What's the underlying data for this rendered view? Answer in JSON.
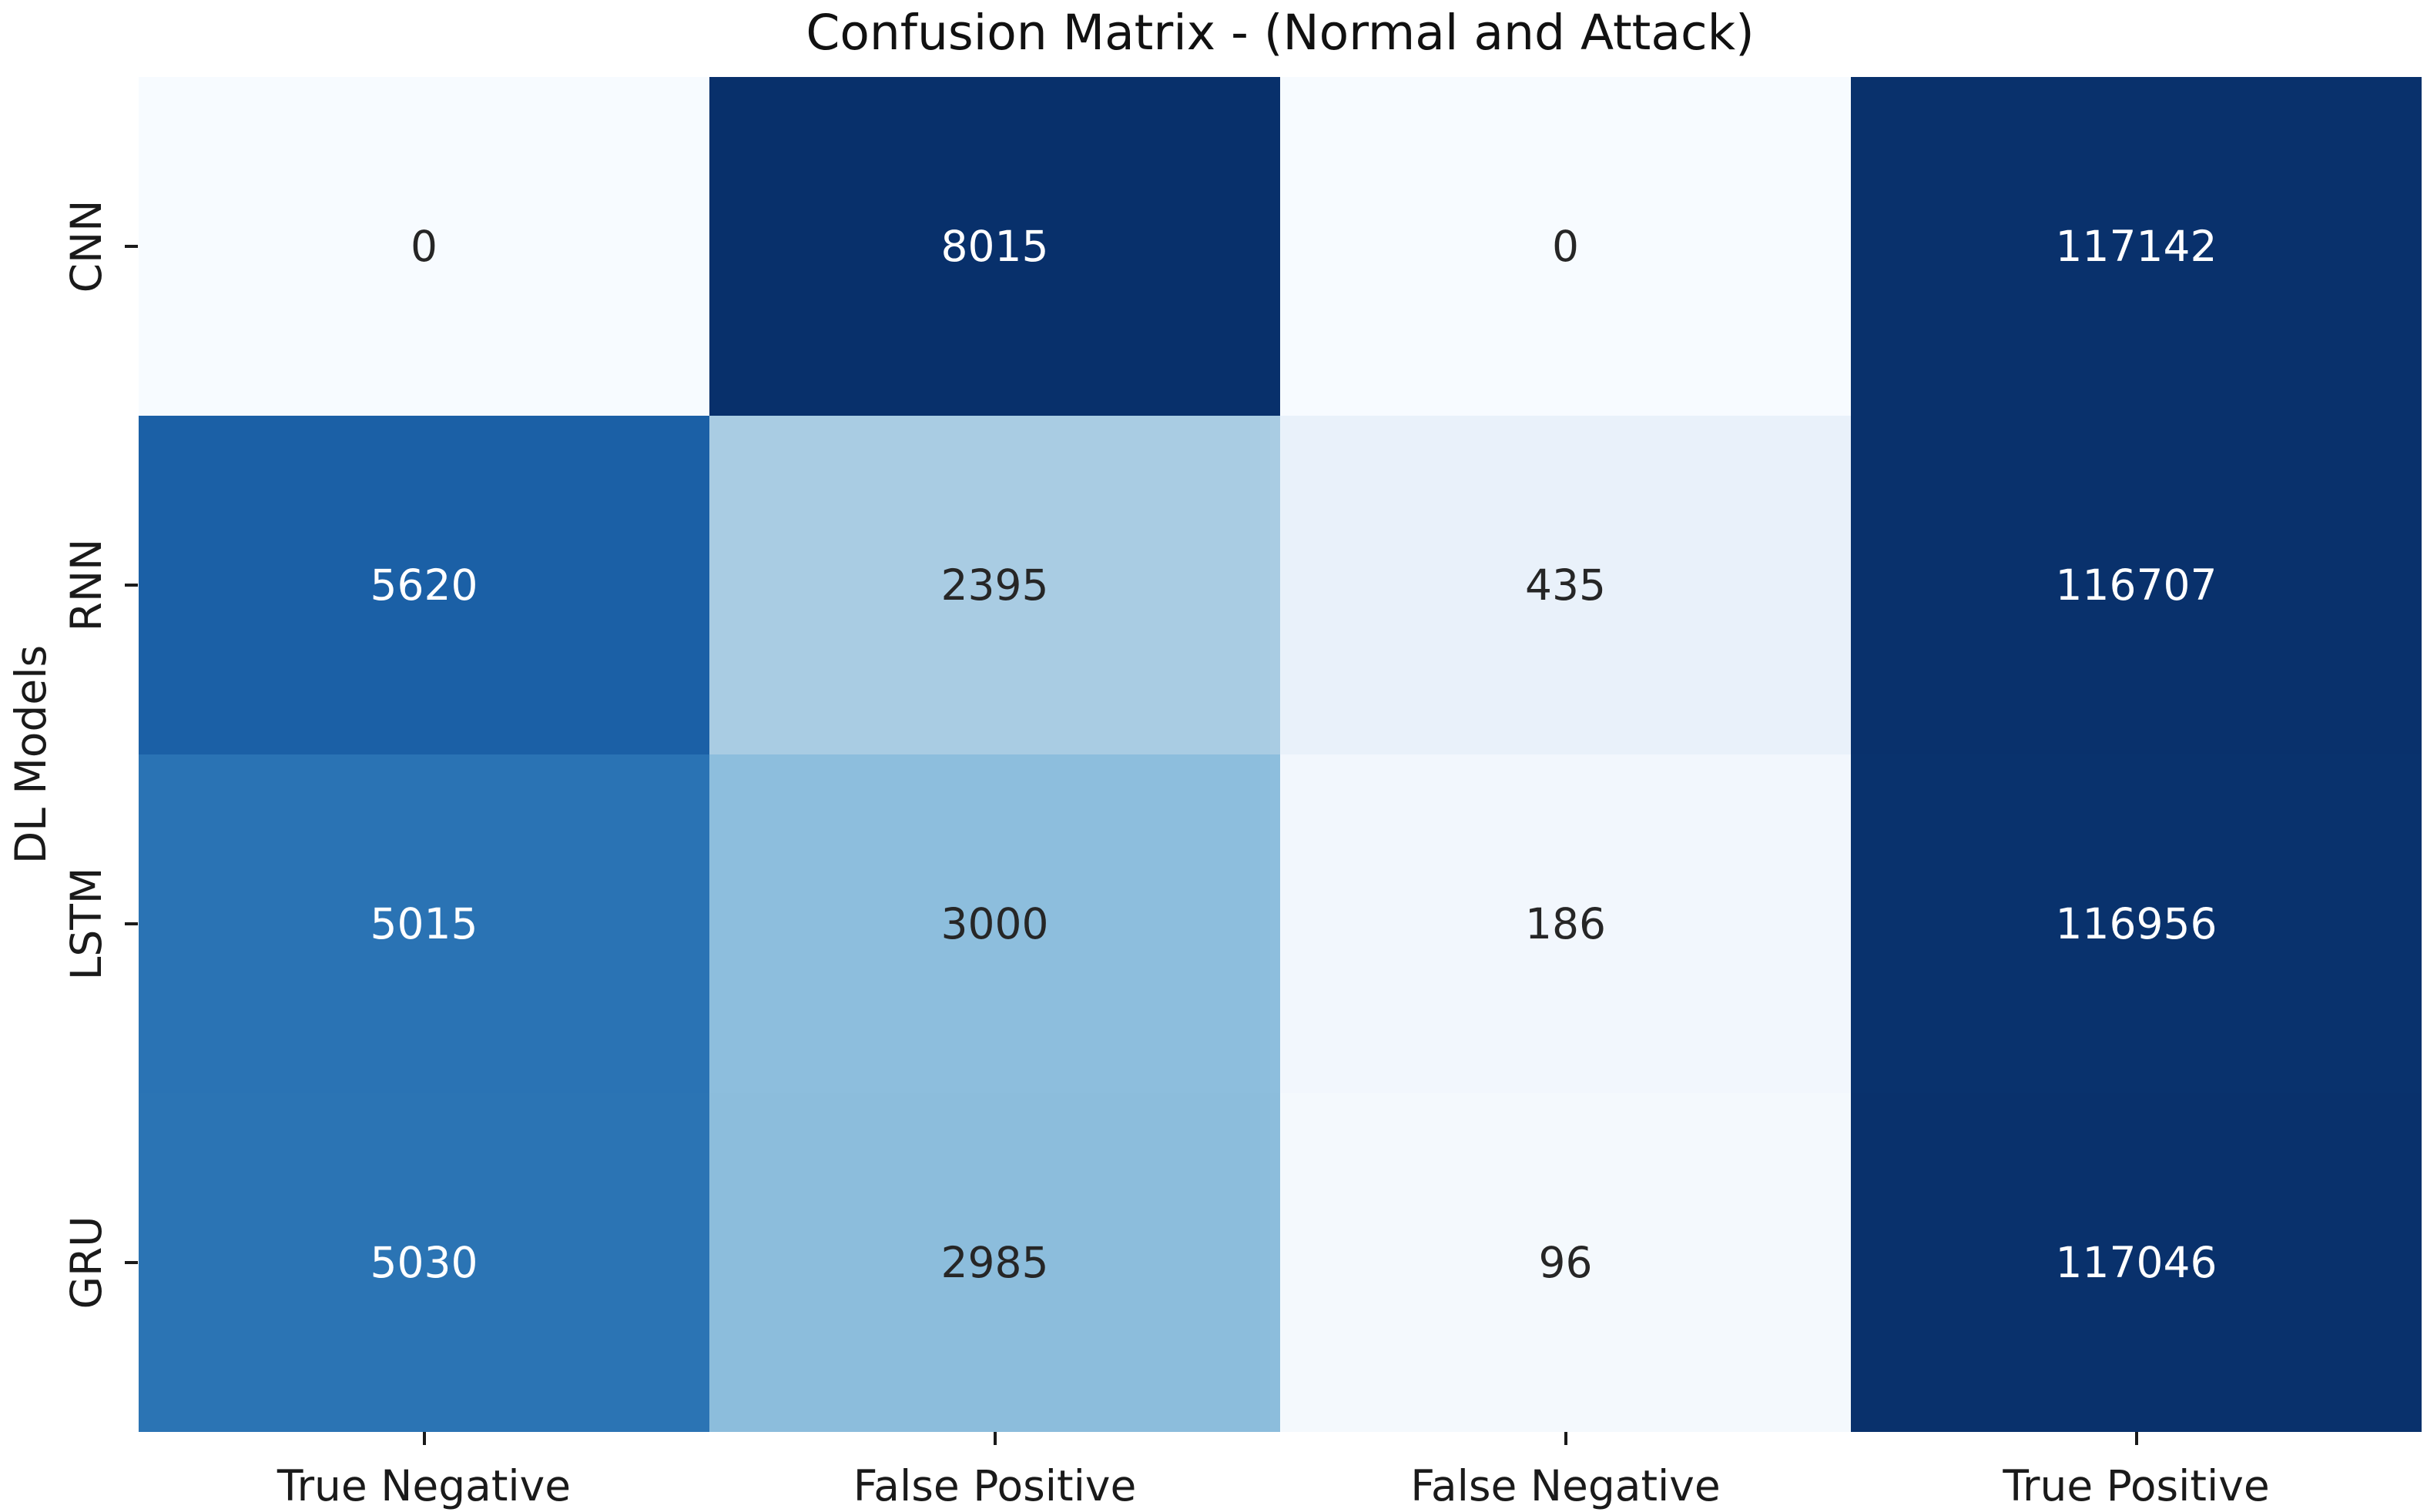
{
  "chart_data": {
    "type": "heatmap",
    "title": "Confusion Matrix - (Normal and Attack)",
    "xlabel": "",
    "ylabel": "DL Models",
    "row_labels": [
      "CNN",
      "RNN",
      "LSTM",
      "GRU"
    ],
    "col_labels": [
      "True Negative",
      "False Positive",
      "False Negative",
      "True Positive"
    ],
    "values": [
      [
        0,
        8015,
        0,
        117142
      ],
      [
        5620,
        2395,
        435,
        116707
      ],
      [
        5015,
        3000,
        186,
        116956
      ],
      [
        5030,
        2985,
        96,
        117046
      ]
    ],
    "colormap": "Blues",
    "cell_colors": [
      [
        "#f7fbff",
        "#08306b",
        "#f7fbff",
        "#09316c"
      ],
      [
        "#1b60a6",
        "#a9cce3",
        "#e9f1fa",
        "#09316c"
      ],
      [
        "#2a73b4",
        "#8dbedd",
        "#f2f7fd",
        "#09326d"
      ],
      [
        "#2b74b4",
        "#8cbddc",
        "#f4f9fd",
        "#09316c"
      ]
    ],
    "text_colors": [
      [
        "#262626",
        "#ffffff",
        "#262626",
        "#ffffff"
      ],
      [
        "#ffffff",
        "#262626",
        "#262626",
        "#ffffff"
      ],
      [
        "#ffffff",
        "#262626",
        "#262626",
        "#ffffff"
      ],
      [
        "#ffffff",
        "#262626",
        "#262626",
        "#ffffff"
      ]
    ],
    "legend": "none",
    "grid": "off"
  },
  "colors": {
    "background": "#ffffff",
    "axis_text": "#1a1a1a",
    "dark_cell_max": "#08306b",
    "light_cell_min": "#f7fbff"
  }
}
